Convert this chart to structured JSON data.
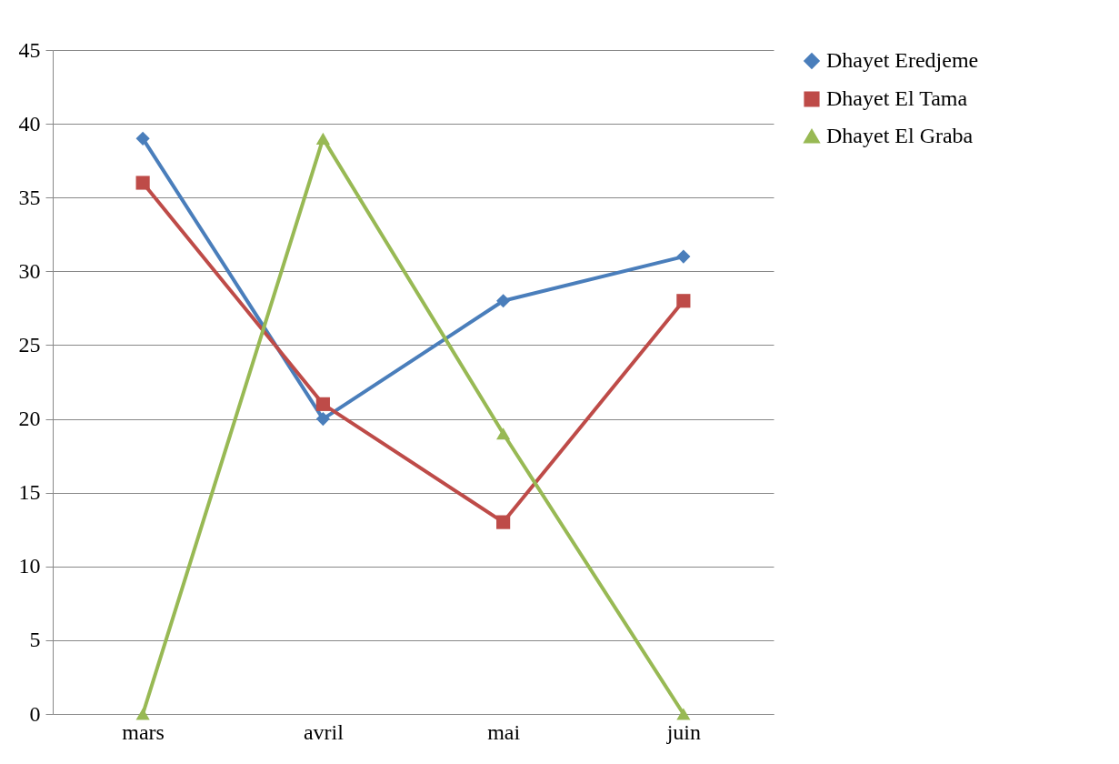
{
  "chart_data": {
    "type": "line",
    "categories": [
      "mars",
      "avril",
      "mai",
      "juin"
    ],
    "series": [
      {
        "name": "Dhayet Eredjeme",
        "color": "#4a7ebb",
        "marker": "diamond",
        "values": [
          39,
          20,
          28,
          31
        ]
      },
      {
        "name": "Dhayet El Tama",
        "color": "#be4b48",
        "marker": "square",
        "values": [
          36,
          21,
          13,
          28
        ]
      },
      {
        "name": "Dhayet El Graba",
        "color": "#98b954",
        "marker": "triangle",
        "values": [
          0,
          39,
          19,
          0
        ]
      }
    ],
    "ylim": [
      0,
      45
    ],
    "yticks": [
      0,
      5,
      10,
      15,
      20,
      25,
      30,
      35,
      40,
      45
    ],
    "grid": "y",
    "legend": "top right",
    "line_style": "solid"
  }
}
